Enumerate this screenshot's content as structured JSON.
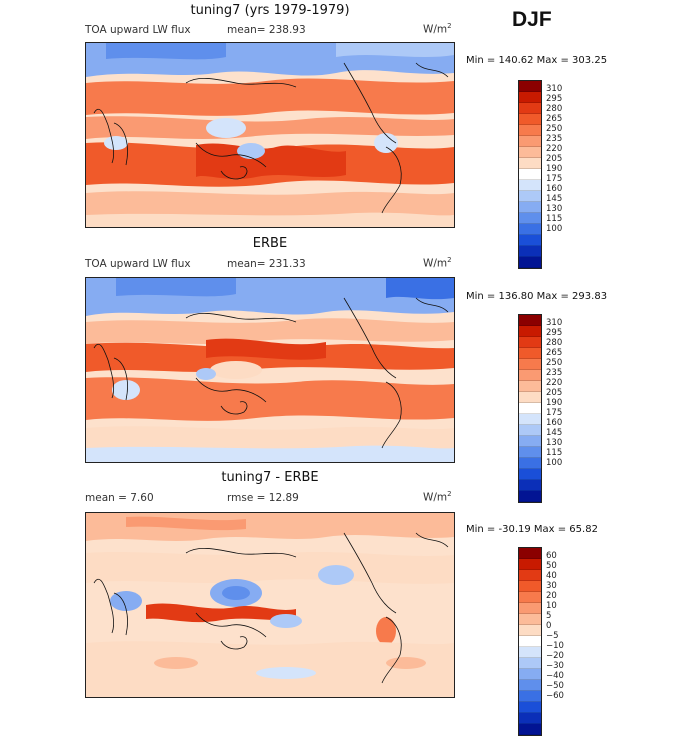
{
  "season": "DJF",
  "units_base": "W/m",
  "units_exp": "2",
  "panels": [
    {
      "title": "tuning7 (yrs 1979-1979)",
      "left_label": "TOA upward LW flux",
      "mid_label": "mean= 238.93",
      "minmax": "Min = 140.62 Max = 303.25"
    },
    {
      "title": "ERBE",
      "left_label": "TOA upward LW flux",
      "mid_label": "mean= 231.33",
      "minmax": "Min = 136.80 Max = 293.83"
    },
    {
      "title": "tuning7 - ERBE",
      "left_label": "mean =    7.60",
      "mid_label": "rmse =   12.89",
      "minmax": "Min = -30.19 Max =   65.82"
    }
  ],
  "colorbar_abs": {
    "labels": [
      "310",
      "295",
      "280",
      "265",
      "250",
      "235",
      "220",
      "205",
      "190",
      "175",
      "160",
      "145",
      "130",
      "115",
      "100"
    ],
    "colors": [
      "#8b0000",
      "#c81a00",
      "#e23a14",
      "#f05a2a",
      "#f77a4c",
      "#fa9a72",
      "#fcbb99",
      "#fddcc4",
      "#ffffff",
      "#d4e4fb",
      "#adc9f7",
      "#86acf2",
      "#5f8fec",
      "#3a70e4",
      "#1a4fd8",
      "#0b2fb8",
      "#021493"
    ]
  },
  "colorbar_diff": {
    "labels": [
      "60",
      "50",
      "40",
      "30",
      "20",
      "10",
      "5",
      "0",
      "−5",
      "−10",
      "−20",
      "−30",
      "−40",
      "−50",
      "−60"
    ],
    "colors": [
      "#8b0000",
      "#c81a00",
      "#e23a14",
      "#f05a2a",
      "#f77a4c",
      "#fa9a72",
      "#fcbb99",
      "#fddcc4",
      "#ffffff",
      "#d4e4fb",
      "#adc9f7",
      "#86acf2",
      "#5f8fec",
      "#3a70e4",
      "#1a4fd8",
      "#0b2fb8",
      "#021493"
    ]
  }
}
